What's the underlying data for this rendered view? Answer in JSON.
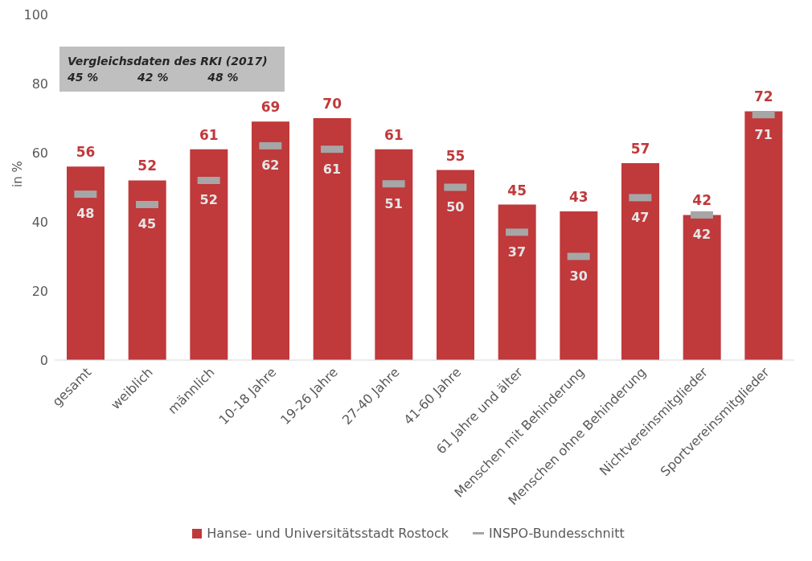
{
  "chart_data": {
    "type": "bar",
    "ylabel": "in %",
    "categories": [
      "gesamt",
      "weiblich",
      "männlich",
      "10-18 Jahre",
      "19-26 Jahre",
      "27-40 Jahre",
      "41-60 Jahre",
      "61 Jahre und älter",
      "Menschen mit Behinderung",
      "Menschen ohne Behinderung",
      "Nichtvereinsmitglieder",
      "Sportvereinsmitglieder"
    ],
    "series": [
      {
        "name": "Hanse- und Universitätsstadt Rostock",
        "color": "#c0393b",
        "values": [
          56,
          52,
          61,
          69,
          70,
          61,
          55,
          45,
          43,
          57,
          42,
          72
        ]
      },
      {
        "name": "INSPO-Bundesschnitt",
        "type": "scatter",
        "color": "#a6a6a6",
        "values": [
          48,
          45,
          52,
          62,
          61,
          51,
          50,
          37,
          30,
          47,
          42,
          71
        ]
      }
    ],
    "ylim": [
      0,
      100
    ],
    "yticks": [
      0,
      20,
      40,
      60,
      80,
      100
    ],
    "grid": false,
    "legend": "bottom",
    "data_labels": true,
    "annotations": [
      "Vergleichsdaten des RKI (2017)",
      "45 %          42 %          48 %"
    ]
  }
}
